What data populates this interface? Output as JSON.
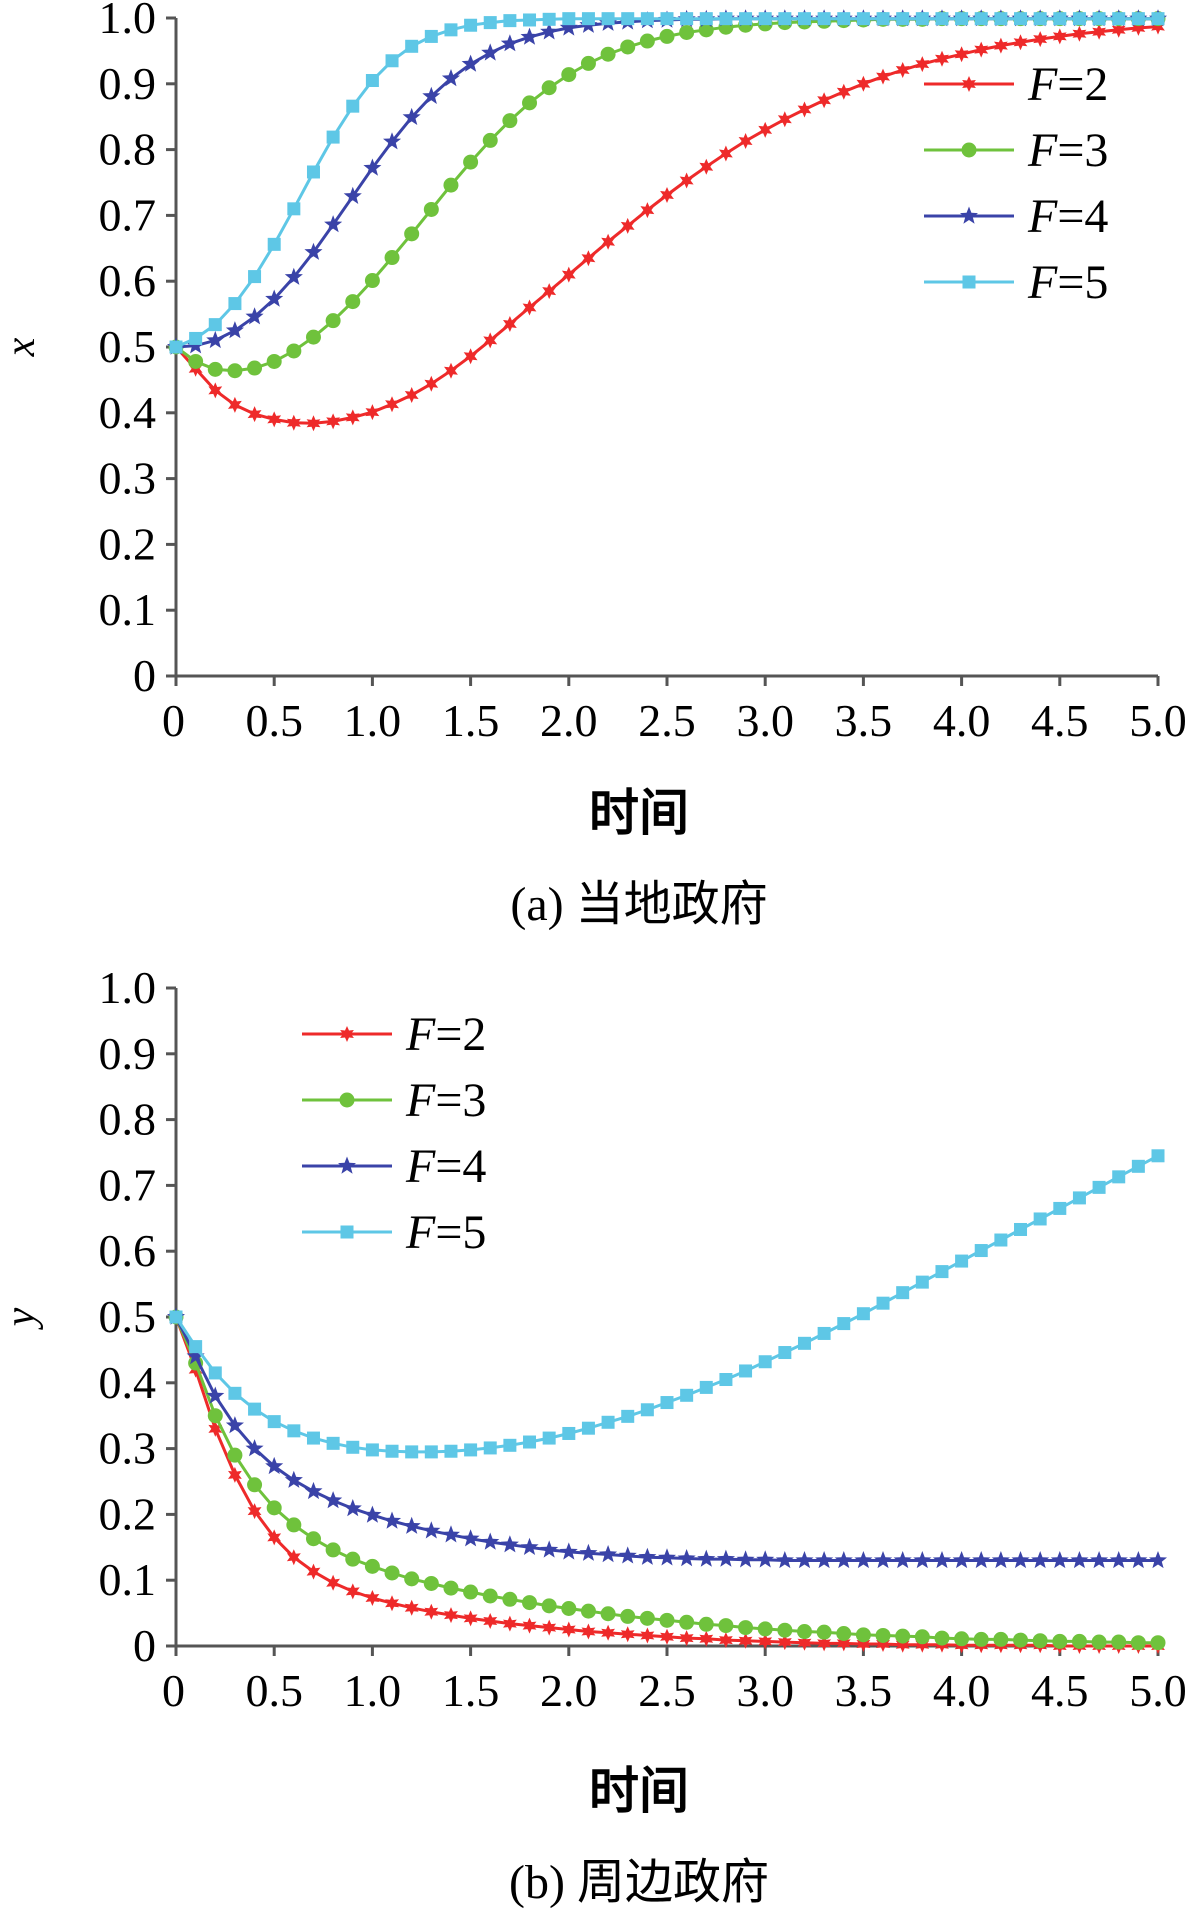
{
  "chart_data": [
    {
      "type": "line",
      "panel_label": "(a) 当地政府",
      "xlabel": "时间",
      "ylabel": "x",
      "xlim": [
        0,
        5.0
      ],
      "ylim": [
        0,
        1.0
      ],
      "xticks": [
        "0",
        "0.5",
        "1.0",
        "1.5",
        "2.0",
        "2.5",
        "3.0",
        "3.5",
        "4.0",
        "4.5",
        "5.0"
      ],
      "yticks": [
        "0",
        "0.1",
        "0.2",
        "0.3",
        "0.4",
        "0.5",
        "0.6",
        "0.7",
        "0.8",
        "0.9",
        "1.0"
      ],
      "legend_position": "top-right",
      "grid": false,
      "x": [
        0,
        0.1,
        0.2,
        0.3,
        0.4,
        0.5,
        0.6,
        0.7,
        0.8,
        0.9,
        1.0,
        1.1,
        1.2,
        1.3,
        1.4,
        1.5,
        1.6,
        1.7,
        1.8,
        1.9,
        2.0,
        2.1,
        2.2,
        2.3,
        2.4,
        2.5,
        2.6,
        2.7,
        2.8,
        2.9,
        3.0,
        3.1,
        3.2,
        3.3,
        3.4,
        3.5,
        3.6,
        3.7,
        3.8,
        3.9,
        4.0,
        4.1,
        4.2,
        4.3,
        4.4,
        4.5,
        4.6,
        4.7,
        4.8,
        4.9,
        5.0
      ],
      "series": [
        {
          "name": "F=2",
          "name_italic": "F",
          "name_rest": "=2",
          "color": "#ee2a2a",
          "marker": "star6",
          "values": [
            0.5,
            0.467,
            0.434,
            0.412,
            0.398,
            0.39,
            0.385,
            0.384,
            0.387,
            0.393,
            0.401,
            0.413,
            0.427,
            0.444,
            0.464,
            0.486,
            0.51,
            0.535,
            0.56,
            0.585,
            0.61,
            0.635,
            0.66,
            0.684,
            0.708,
            0.731,
            0.753,
            0.774,
            0.794,
            0.813,
            0.83,
            0.846,
            0.861,
            0.875,
            0.888,
            0.9,
            0.911,
            0.921,
            0.93,
            0.938,
            0.945,
            0.952,
            0.958,
            0.963,
            0.968,
            0.972,
            0.976,
            0.979,
            0.982,
            0.985,
            0.987
          ]
        },
        {
          "name": "F=3",
          "name_italic": "F",
          "name_rest": "=3",
          "color": "#6fc23c",
          "marker": "circle",
          "values": [
            0.5,
            0.478,
            0.466,
            0.464,
            0.468,
            0.478,
            0.494,
            0.515,
            0.54,
            0.569,
            0.601,
            0.636,
            0.672,
            0.709,
            0.746,
            0.781,
            0.814,
            0.844,
            0.871,
            0.894,
            0.914,
            0.931,
            0.945,
            0.956,
            0.965,
            0.972,
            0.978,
            0.982,
            0.986,
            0.989,
            0.991,
            0.993,
            0.994,
            0.995,
            0.996,
            0.997,
            0.998,
            0.998,
            0.998,
            0.999,
            0.999,
            0.999,
            0.999,
            0.999,
            0.999,
            0.999,
            0.999,
            0.999,
            0.999,
            0.999,
            0.999
          ]
        },
        {
          "name": "F=4",
          "name_italic": "F",
          "name_rest": "=4",
          "color": "#3a43a8",
          "marker": "star5",
          "values": [
            0.5,
            0.502,
            0.51,
            0.525,
            0.546,
            0.573,
            0.606,
            0.644,
            0.686,
            0.729,
            0.772,
            0.812,
            0.849,
            0.881,
            0.908,
            0.93,
            0.947,
            0.961,
            0.971,
            0.979,
            0.985,
            0.989,
            0.992,
            0.994,
            0.996,
            0.997,
            0.998,
            0.998,
            0.999,
            0.999,
            0.999,
            0.999,
            0.999,
            0.999,
            0.999,
            0.999,
            0.999,
            0.999,
            0.999,
            0.999,
            0.999,
            0.999,
            0.999,
            0.999,
            0.999,
            0.999,
            0.999,
            0.999,
            0.999,
            0.999,
            0.999
          ]
        },
        {
          "name": "F=5",
          "name_italic": "F",
          "name_rest": "=5",
          "color": "#5ec7e6",
          "marker": "square",
          "values": [
            0.5,
            0.513,
            0.534,
            0.566,
            0.607,
            0.656,
            0.71,
            0.766,
            0.819,
            0.866,
            0.905,
            0.935,
            0.957,
            0.972,
            0.982,
            0.989,
            0.993,
            0.996,
            0.997,
            0.998,
            0.999,
            0.999,
            0.999,
            0.999,
            0.999,
            0.999,
            0.999,
            0.999,
            0.999,
            0.999,
            0.999,
            0.999,
            0.999,
            0.999,
            0.999,
            0.999,
            0.999,
            0.999,
            0.999,
            0.999,
            0.999,
            0.999,
            0.999,
            0.999,
            0.999,
            0.999,
            0.999,
            0.999,
            0.999,
            0.999,
            0.999
          ]
        }
      ]
    },
    {
      "type": "line",
      "panel_label": "(b) 周边政府",
      "xlabel": "时间",
      "ylabel": "y",
      "xlim": [
        0,
        5.0
      ],
      "ylim": [
        0,
        1.0
      ],
      "xticks": [
        "0",
        "0.5",
        "1.0",
        "1.5",
        "2.0",
        "2.5",
        "3.0",
        "3.5",
        "4.0",
        "4.5",
        "5.0"
      ],
      "yticks": [
        "0",
        "0.1",
        "0.2",
        "0.3",
        "0.4",
        "0.5",
        "0.6",
        "0.7",
        "0.8",
        "0.9",
        "1.0"
      ],
      "legend_position": "top-left",
      "grid": false,
      "x": [
        0,
        0.1,
        0.2,
        0.3,
        0.4,
        0.5,
        0.6,
        0.7,
        0.8,
        0.9,
        1.0,
        1.1,
        1.2,
        1.3,
        1.4,
        1.5,
        1.6,
        1.7,
        1.8,
        1.9,
        2.0,
        2.1,
        2.2,
        2.3,
        2.4,
        2.5,
        2.6,
        2.7,
        2.8,
        2.9,
        3.0,
        3.1,
        3.2,
        3.3,
        3.4,
        3.5,
        3.6,
        3.7,
        3.8,
        3.9,
        4.0,
        4.1,
        4.2,
        4.3,
        4.4,
        4.5,
        4.6,
        4.7,
        4.8,
        4.9,
        5.0
      ],
      "series": [
        {
          "name": "F=2",
          "name_italic": "F",
          "name_rest": "=2",
          "color": "#ee2a2a",
          "marker": "star6",
          "values": [
            0.5,
            0.42,
            0.33,
            0.26,
            0.205,
            0.165,
            0.135,
            0.113,
            0.096,
            0.083,
            0.073,
            0.065,
            0.058,
            0.052,
            0.047,
            0.042,
            0.038,
            0.034,
            0.031,
            0.028,
            0.025,
            0.022,
            0.02,
            0.018,
            0.016,
            0.014,
            0.012,
            0.011,
            0.009,
            0.008,
            0.007,
            0.006,
            0.005,
            0.004,
            0.004,
            0.003,
            0.003,
            0.002,
            0.002,
            0.002,
            0.001,
            0.001,
            0.001,
            0.001,
            0.001,
            0.0,
            0.0,
            0.0,
            0.0,
            0.0,
            0.0
          ]
        },
        {
          "name": "F=3",
          "name_italic": "F",
          "name_rest": "=3",
          "color": "#6fc23c",
          "marker": "circle",
          "values": [
            0.5,
            0.43,
            0.35,
            0.29,
            0.245,
            0.21,
            0.184,
            0.163,
            0.146,
            0.132,
            0.121,
            0.111,
            0.102,
            0.095,
            0.088,
            0.082,
            0.076,
            0.071,
            0.066,
            0.061,
            0.057,
            0.053,
            0.049,
            0.045,
            0.042,
            0.039,
            0.036,
            0.033,
            0.031,
            0.028,
            0.026,
            0.024,
            0.022,
            0.021,
            0.019,
            0.017,
            0.016,
            0.015,
            0.014,
            0.012,
            0.011,
            0.01,
            0.01,
            0.009,
            0.008,
            0.007,
            0.007,
            0.006,
            0.006,
            0.005,
            0.005
          ]
        },
        {
          "name": "F=4",
          "name_italic": "F",
          "name_rest": "=4",
          "color": "#3a43a8",
          "marker": "star5",
          "values": [
            0.5,
            0.44,
            0.38,
            0.335,
            0.3,
            0.273,
            0.252,
            0.235,
            0.221,
            0.209,
            0.199,
            0.19,
            0.182,
            0.175,
            0.169,
            0.163,
            0.158,
            0.154,
            0.15,
            0.146,
            0.143,
            0.141,
            0.139,
            0.137,
            0.135,
            0.134,
            0.133,
            0.132,
            0.132,
            0.131,
            0.131,
            0.13,
            0.13,
            0.13,
            0.13,
            0.13,
            0.13,
            0.13,
            0.13,
            0.13,
            0.13,
            0.13,
            0.13,
            0.13,
            0.13,
            0.13,
            0.13,
            0.13,
            0.13,
            0.13,
            0.13
          ]
        },
        {
          "name": "F=5",
          "name_italic": "F",
          "name_rest": "=5",
          "color": "#5ec7e6",
          "marker": "square",
          "values": [
            0.5,
            0.455,
            0.415,
            0.384,
            0.36,
            0.341,
            0.327,
            0.316,
            0.308,
            0.302,
            0.298,
            0.296,
            0.295,
            0.295,
            0.296,
            0.298,
            0.301,
            0.305,
            0.31,
            0.316,
            0.323,
            0.331,
            0.34,
            0.349,
            0.359,
            0.37,
            0.381,
            0.393,
            0.405,
            0.418,
            0.432,
            0.446,
            0.46,
            0.475,
            0.49,
            0.505,
            0.521,
            0.537,
            0.553,
            0.569,
            0.585,
            0.601,
            0.617,
            0.633,
            0.649,
            0.665,
            0.681,
            0.697,
            0.713,
            0.729,
            0.745
          ]
        }
      ]
    }
  ]
}
